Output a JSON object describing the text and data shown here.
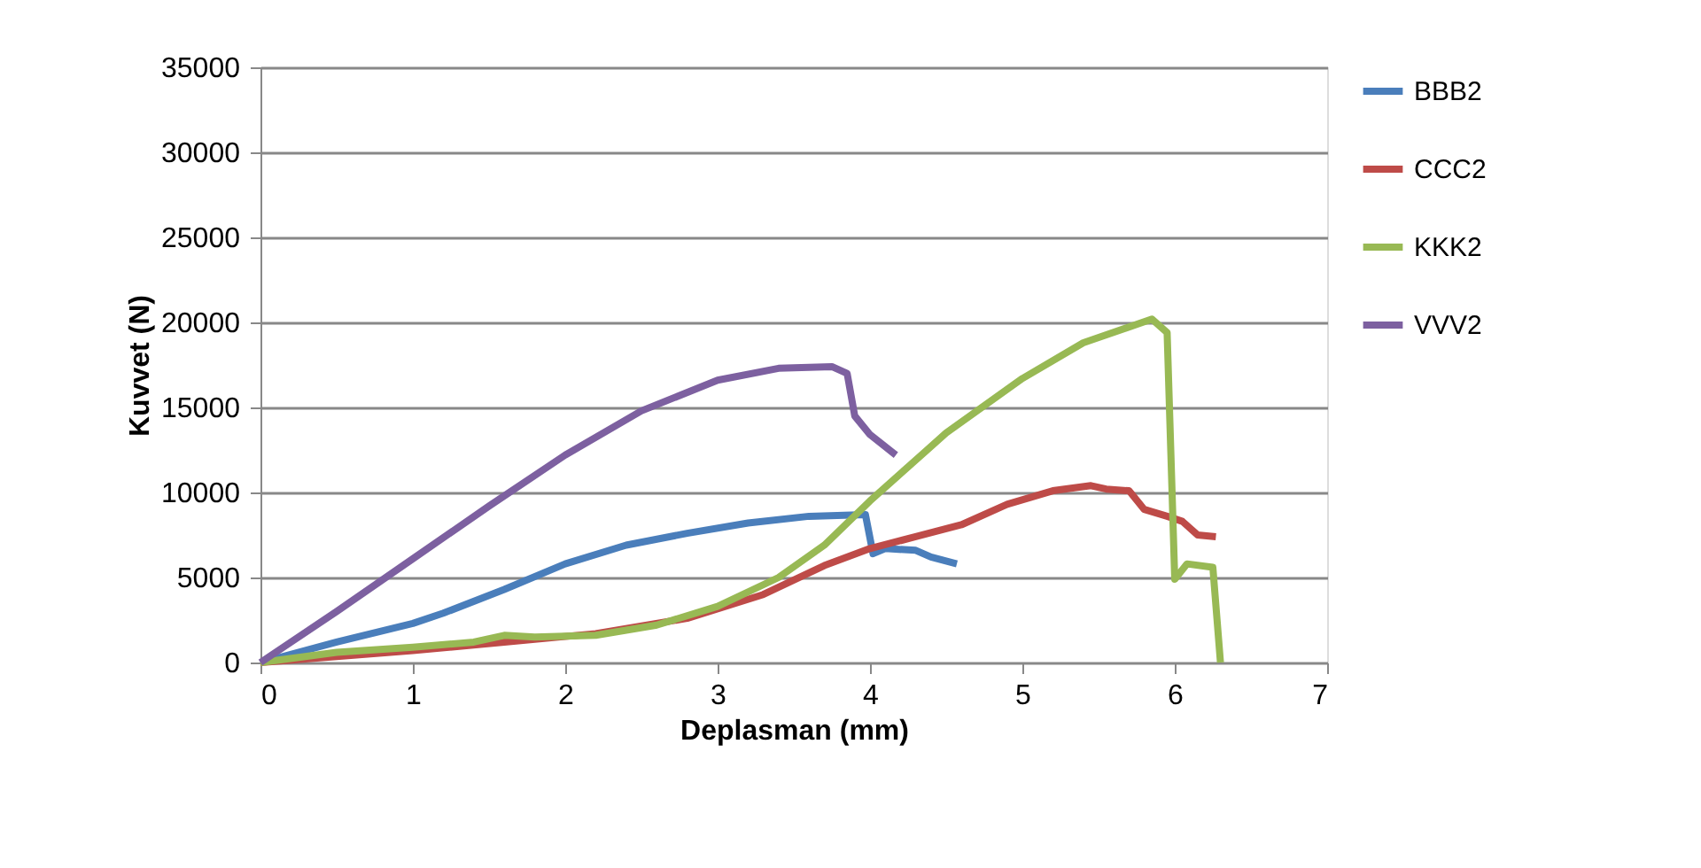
{
  "chart_data": {
    "type": "line",
    "xlabel": "Deplasman (mm)",
    "ylabel": "Kuvvet (N)",
    "xlim": [
      0,
      7
    ],
    "xticks": [
      0,
      1,
      2,
      3,
      4,
      5,
      6,
      7
    ],
    "ylim": [
      0,
      35000
    ],
    "yticks": [
      0,
      5000,
      10000,
      15000,
      20000,
      25000,
      30000,
      35000
    ],
    "grid": "y",
    "legend": "right",
    "marker": "none",
    "line_style": "solid",
    "series": [
      {
        "name": "BBB2",
        "color": "#4a7ebb",
        "x": [
          0,
          0.5,
          1,
          1.2,
          1.6,
          2,
          2.4,
          2.8,
          3.2,
          3.6,
          3.97,
          4.02,
          4.1,
          4.3,
          4.4,
          4.57
        ],
        "values": [
          0,
          1200,
          2300,
          2900,
          4300,
          5800,
          6900,
          7600,
          8200,
          8600,
          8700,
          6400,
          6700,
          6600,
          6200,
          5800
        ]
      },
      {
        "name": "CCC2",
        "color": "#be4b48",
        "x": [
          0,
          1,
          1.6,
          2.2,
          2.8,
          3.3,
          3.7,
          4,
          4.3,
          4.6,
          4.9,
          5.2,
          5.45,
          5.55,
          5.7,
          5.8,
          5.95,
          6.05,
          6.15,
          6.27
        ],
        "values": [
          0,
          700,
          1200,
          1700,
          2600,
          4000,
          5700,
          6700,
          7400,
          8100,
          9300,
          10100,
          10400,
          10200,
          10100,
          9000,
          8600,
          8300,
          7500,
          7400
        ]
      },
      {
        "name": "KKK2",
        "color": "#98b954",
        "x": [
          0,
          0.5,
          1,
          1.4,
          1.6,
          1.8,
          2.2,
          2.6,
          3,
          3.4,
          3.7,
          4,
          4.5,
          5,
          5.4,
          5.85,
          5.95,
          6,
          6.08,
          6.25,
          6.3
        ],
        "values": [
          0,
          600,
          900,
          1200,
          1600,
          1500,
          1600,
          2200,
          3300,
          5000,
          6900,
          9500,
          13500,
          16700,
          18800,
          20200,
          19400,
          4900,
          5800,
          5600,
          0
        ]
      },
      {
        "name": "VVV2",
        "color": "#7d60a0",
        "x": [
          0,
          0.5,
          1,
          1.5,
          2,
          2.5,
          3,
          3.4,
          3.75,
          3.85,
          3.9,
          4,
          4.17
        ],
        "values": [
          0,
          3000,
          6100,
          9200,
          12200,
          14800,
          16600,
          17300,
          17400,
          17000,
          14500,
          13400,
          12200
        ]
      }
    ]
  }
}
